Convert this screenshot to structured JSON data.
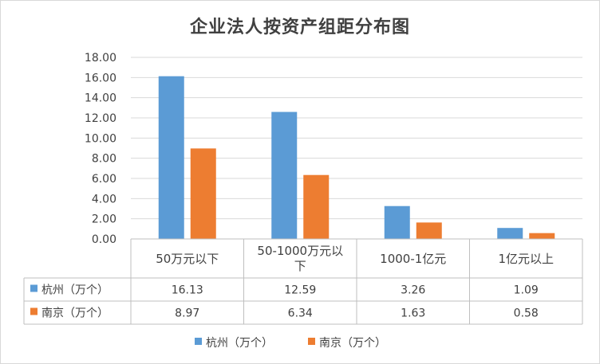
{
  "chart_data": {
    "type": "bar",
    "title": "企业法人按资产组距分布图",
    "categories": [
      [
        "50万元以下"
      ],
      [
        "50-1000万元以",
        "下"
      ],
      [
        "1000-1亿元"
      ],
      [
        "1亿元以上"
      ]
    ],
    "series": [
      {
        "name": "杭州（万个）",
        "values": [
          16.13,
          12.59,
          3.26,
          1.09
        ],
        "color": "#5b9bd5"
      },
      {
        "name": "南京（万个）",
        "values": [
          8.97,
          6.34,
          1.63,
          0.58
        ],
        "color": "#ed7d31"
      }
    ],
    "value_labels": [
      [
        "16.13",
        "12.59",
        "3.26",
        "1.09"
      ],
      [
        "8.97",
        "6.34",
        "1.63",
        "0.58"
      ]
    ],
    "yticks": [
      "0.00",
      "2.00",
      "4.00",
      "6.00",
      "8.00",
      "10.00",
      "12.00",
      "14.00",
      "16.00",
      "18.00"
    ],
    "ylim": [
      0,
      18
    ],
    "grid": true,
    "data_table": true,
    "legend_position": "bottom"
  }
}
